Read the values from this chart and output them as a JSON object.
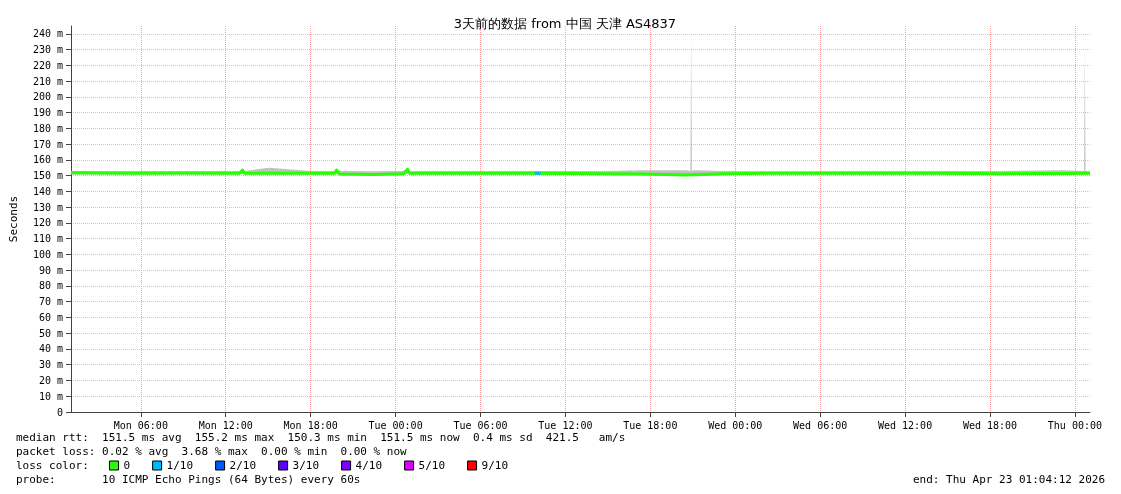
{
  "chart_data": {
    "type": "line",
    "title": "3天前的数据 from 中国 天津 AS4837",
    "ylabel": "Seconds",
    "xlim": [
      "2026-04-20T01:04",
      "2026-04-23T01:04"
    ],
    "xticks": [
      {
        "value": "2026-04-20T06:00",
        "label": "Mon 06:00"
      },
      {
        "value": "2026-04-20T12:00",
        "label": "Mon 12:00"
      },
      {
        "value": "2026-04-20T18:00",
        "label": "Mon 18:00"
      },
      {
        "value": "2026-04-21T00:00",
        "label": "Tue 00:00"
      },
      {
        "value": "2026-04-21T06:00",
        "label": "Tue 06:00"
      },
      {
        "value": "2026-04-21T12:00",
        "label": "Tue 12:00"
      },
      {
        "value": "2026-04-21T18:00",
        "label": "Tue 18:00"
      },
      {
        "value": "2026-04-22T00:00",
        "label": "Wed 00:00"
      },
      {
        "value": "2026-04-22T06:00",
        "label": "Wed 06:00"
      },
      {
        "value": "2026-04-22T12:00",
        "label": "Wed 12:00"
      },
      {
        "value": "2026-04-22T18:00",
        "label": "Wed 18:00"
      },
      {
        "value": "2026-04-23T00:00",
        "label": "Thu 00:00"
      }
    ],
    "ylim": [
      0,
      245
    ],
    "yticks": [
      0,
      {
        "value": 10,
        "label": "10 m"
      },
      {
        "value": 20,
        "label": "20 m"
      },
      {
        "value": 30,
        "label": "30 m"
      },
      {
        "value": 40,
        "label": "40 m"
      },
      {
        "value": 50,
        "label": "50 m"
      },
      {
        "value": 60,
        "label": "60 m"
      },
      {
        "value": 70,
        "label": "70 m"
      },
      {
        "value": 80,
        "label": "80 m"
      },
      {
        "value": 90,
        "label": "90 m"
      },
      {
        "value": 100,
        "label": "100 m"
      },
      {
        "value": 110,
        "label": "110 m"
      },
      {
        "value": 120,
        "label": "120 m"
      },
      {
        "value": 130,
        "label": "130 m"
      },
      {
        "value": 140,
        "label": "140 m"
      },
      {
        "value": 150,
        "label": "150 m"
      },
      {
        "value": 160,
        "label": "160 m"
      },
      {
        "value": 170,
        "label": "170 m"
      },
      {
        "value": 180,
        "label": "180 m"
      },
      {
        "value": 190,
        "label": "190 m"
      },
      {
        "value": 200,
        "label": "200 m"
      },
      {
        "value": 210,
        "label": "210 m"
      },
      {
        "value": 220,
        "label": "220 m"
      },
      {
        "value": 230,
        "label": "230 m"
      },
      {
        "value": 240,
        "label": "240 m"
      }
    ],
    "grid": true,
    "legend": "bottom left",
    "marker": "none",
    "series": [
      {
        "name": "0",
        "color": "#26ff00",
        "x": [
          "2026-04-20T01:04",
          "2026-04-20T03:23",
          "2026-04-20T06:00",
          "2026-04-20T09:02",
          "2026-04-20T12:00",
          "2026-04-20T12:59",
          "2026-04-20T13:12",
          "2026-04-20T13:20",
          "2026-04-20T15:02",
          "2026-04-20T18:00",
          "2026-04-20T19:42",
          "2026-04-20T19:50",
          "2026-04-20T20:03",
          "2026-04-20T22:27",
          "2026-04-21T00:34",
          "2026-04-21T00:51",
          "2026-04-21T00:59",
          "2026-04-21T04:06",
          "2026-04-21T09:44",
          "2026-04-21T14:41",
          "2026-04-21T17:30",
          "2026-04-21T20:24",
          "2026-04-21T20:32",
          "2026-04-21T20:50",
          "2026-04-21T20:53",
          "2026-04-21T20:56",
          "2026-04-21T21:02",
          "2026-04-21T21:08",
          "2026-04-21T23:09",
          "2026-04-22T03:23",
          "2026-04-22T09:02",
          "2026-04-22T14:41",
          "2026-04-22T18:55",
          "2026-04-22T23:09",
          "2026-04-23T00:39",
          "2026-04-23T00:42",
          "2026-04-23T00:45",
          "2026-04-23T01:04"
        ],
        "values": [
          151.8,
          151.7,
          151.6,
          151.7,
          151.6,
          151.6,
          153.5,
          151.5,
          151.6,
          151.6,
          151.6,
          153.5,
          151,
          150.8,
          151.2,
          154,
          151.6,
          151.6,
          151.5,
          151.3,
          151,
          150.5,
          150.5,
          150.6,
          150.6,
          150.6,
          150.6,
          150.6,
          151.2,
          151.6,
          151.6,
          151.5,
          151.3,
          151.4,
          151.5,
          151.5,
          151.5,
          151.5
        ],
        "lower": [
          150.8,
          150.8,
          150.8,
          150.8,
          150.8,
          150.8,
          151,
          150.8,
          150.8,
          150.8,
          150.8,
          151,
          150.3,
          150.3,
          150.5,
          151,
          150.8,
          150.8,
          150.8,
          150.5,
          150.3,
          149.8,
          149.8,
          149.8,
          149.8,
          149.8,
          149.8,
          149.8,
          150.5,
          150.8,
          150.8,
          150.8,
          150.5,
          150.5,
          150.8,
          150.8,
          150.8,
          150.8
        ],
        "upper": [
          153,
          152.8,
          153,
          152.8,
          153,
          153,
          154.5,
          153,
          155,
          153,
          153,
          154.5,
          153,
          152.8,
          153,
          155,
          153,
          153,
          153,
          153,
          153.5,
          153.5,
          153.5,
          153,
          240,
          153,
          153.5,
          153.5,
          153,
          152.8,
          153,
          153,
          153,
          153.5,
          153,
          230,
          153,
          153
        ]
      },
      {
        "name": "1/10",
        "color": "#00b8ff",
        "x": [
          "2026-04-21T09:50",
          "2026-04-21T10:15"
        ],
        "values": [
          151.5,
          151.5
        ]
      },
      {
        "name": "2/10",
        "color": "#0059ff"
      },
      {
        "name": "3/10",
        "color": "#5e00ff"
      },
      {
        "name": "4/10",
        "color": "#7e00ff"
      },
      {
        "name": "5/10",
        "color": "#dd00ff"
      },
      {
        "name": "9/10",
        "color": "#ff0000"
      }
    ],
    "annotations": [
      "median rtt:  151.5 ms avg  155.2 ms max  150.3 ms min  151.5 ms now  0.4 ms sd  421.5   am/s",
      "packet loss: 0.02 % avg  3.68 % max  0.00 % min  0.00 % now",
      "loss color:",
      "probe:       10 ICMP Echo Pings (64 Bytes) every 60s",
      "end: Thu Apr 23 01:04:12 2026"
    ]
  }
}
